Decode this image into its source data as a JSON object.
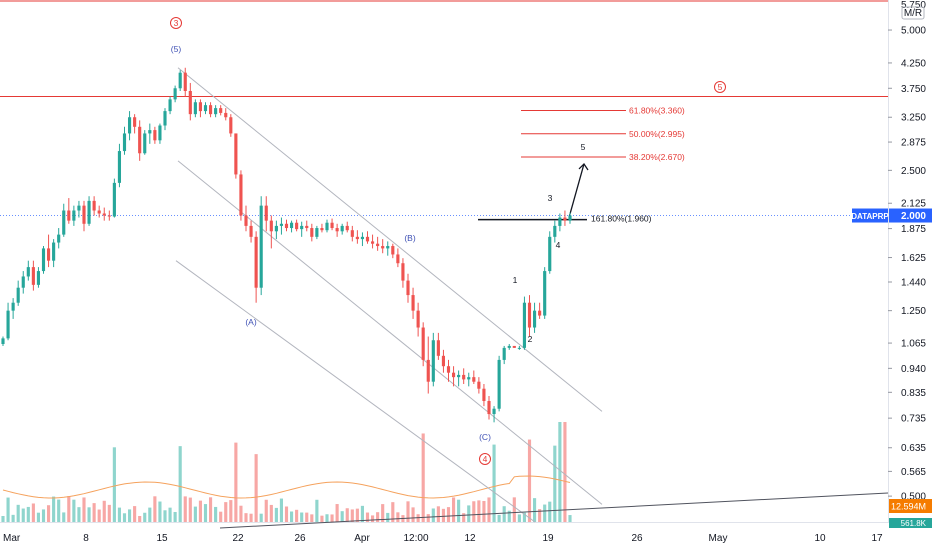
{
  "chart_data": {
    "type": "candlestick",
    "symbol": "DATAPRP",
    "last_price": "2.000",
    "scale_label": "M/R",
    "y_scale": "log",
    "ylim": [
      0.44,
      5.8
    ],
    "y_ticks": [
      "5.000",
      "4.250",
      "3.750",
      "3.250",
      "2.875",
      "2.500",
      "2.125",
      "1.875",
      "1.625",
      "1.440",
      "1.250",
      "1.065",
      "0.940",
      "0.835",
      "0.735",
      "0.635",
      "0.565",
      "0.500"
    ],
    "x_ticks": [
      "Mar",
      "8",
      "15",
      "22",
      "26",
      "Apr",
      "12:00",
      "12",
      "19",
      "26",
      "May",
      "10",
      "17"
    ],
    "candles_ohlc": [
      [
        1.06,
        1.1,
        1.05,
        1.09
      ],
      [
        1.09,
        1.3,
        1.08,
        1.25
      ],
      [
        1.25,
        1.33,
        1.2,
        1.3
      ],
      [
        1.3,
        1.45,
        1.28,
        1.4
      ],
      [
        1.4,
        1.52,
        1.36,
        1.48
      ],
      [
        1.48,
        1.6,
        1.45,
        1.55
      ],
      [
        1.55,
        1.6,
        1.38,
        1.42
      ],
      [
        1.42,
        1.55,
        1.4,
        1.52
      ],
      [
        1.52,
        1.72,
        1.5,
        1.7
      ],
      [
        1.7,
        1.82,
        1.55,
        1.6
      ],
      [
        1.6,
        1.78,
        1.55,
        1.75
      ],
      [
        1.75,
        1.88,
        1.7,
        1.82
      ],
      [
        1.82,
        2.12,
        1.8,
        2.05
      ],
      [
        2.05,
        2.18,
        1.92,
        1.95
      ],
      [
        1.95,
        2.1,
        1.9,
        2.05
      ],
      [
        2.05,
        2.15,
        1.98,
        2.1
      ],
      [
        2.1,
        2.15,
        1.85,
        1.92
      ],
      [
        1.92,
        2.2,
        1.9,
        2.15
      ],
      [
        2.15,
        2.2,
        2.0,
        2.05
      ],
      [
        2.05,
        2.1,
        1.98,
        2.02
      ],
      [
        2.02,
        2.08,
        1.95,
        2.0
      ],
      [
        2.0,
        2.05,
        1.95,
        1.99
      ],
      [
        1.99,
        2.4,
        1.98,
        2.35
      ],
      [
        2.35,
        2.85,
        2.3,
        2.75
      ],
      [
        2.75,
        3.1,
        2.7,
        3.0
      ],
      [
        3.0,
        3.35,
        2.9,
        3.25
      ],
      [
        3.25,
        3.3,
        3.0,
        3.1
      ],
      [
        3.1,
        3.2,
        2.62,
        2.72
      ],
      [
        2.72,
        3.05,
        2.7,
        3.0
      ],
      [
        3.0,
        3.15,
        2.85,
        3.05
      ],
      [
        3.05,
        3.1,
        2.85,
        2.9
      ],
      [
        2.9,
        3.15,
        2.85,
        3.12
      ],
      [
        3.12,
        3.4,
        3.05,
        3.35
      ],
      [
        3.35,
        3.6,
        3.3,
        3.55
      ],
      [
        3.55,
        3.8,
        3.5,
        3.75
      ],
      [
        3.75,
        4.1,
        3.7,
        4.05
      ],
      [
        4.05,
        4.15,
        3.6,
        3.7
      ],
      [
        3.7,
        3.85,
        3.2,
        3.3
      ],
      [
        3.3,
        3.55,
        3.25,
        3.5
      ],
      [
        3.5,
        3.55,
        3.25,
        3.35
      ],
      [
        3.35,
        3.5,
        3.3,
        3.45
      ],
      [
        3.45,
        3.5,
        3.25,
        3.3
      ],
      [
        3.3,
        3.45,
        3.25,
        3.4
      ],
      [
        3.4,
        3.45,
        3.28,
        3.32
      ],
      [
        3.32,
        3.4,
        3.2,
        3.25
      ],
      [
        3.25,
        3.3,
        2.95,
        3.0
      ],
      [
        3.0,
        3.0,
        2.4,
        2.45
      ],
      [
        2.45,
        2.5,
        1.95,
        2.0
      ],
      [
        2.0,
        2.1,
        1.85,
        1.9
      ],
      [
        1.9,
        1.95,
        1.75,
        1.8
      ],
      [
        1.8,
        1.85,
        1.3,
        1.4
      ],
      [
        1.4,
        2.2,
        1.35,
        2.1
      ],
      [
        2.1,
        2.2,
        1.85,
        1.95
      ],
      [
        1.95,
        2.0,
        1.7,
        1.85
      ],
      [
        1.85,
        1.95,
        1.78,
        1.9
      ],
      [
        1.9,
        1.98,
        1.82,
        1.92
      ],
      [
        1.92,
        1.96,
        1.85,
        1.88
      ],
      [
        1.88,
        1.95,
        1.84,
        1.93
      ],
      [
        1.93,
        1.96,
        1.85,
        1.87
      ],
      [
        1.87,
        1.94,
        1.8,
        1.9
      ],
      [
        1.9,
        1.95,
        1.85,
        1.88
      ],
      [
        1.88,
        1.92,
        1.76,
        1.8
      ],
      [
        1.8,
        1.9,
        1.78,
        1.88
      ],
      [
        1.88,
        1.92,
        1.84,
        1.86
      ],
      [
        1.86,
        1.96,
        1.84,
        1.93
      ],
      [
        1.93,
        1.97,
        1.86,
        1.88
      ],
      [
        1.88,
        1.92,
        1.8,
        1.85
      ],
      [
        1.85,
        1.92,
        1.82,
        1.9
      ],
      [
        1.9,
        1.94,
        1.84,
        1.86
      ],
      [
        1.86,
        1.9,
        1.76,
        1.8
      ],
      [
        1.8,
        1.86,
        1.74,
        1.78
      ],
      [
        1.78,
        1.84,
        1.72,
        1.8
      ],
      [
        1.8,
        1.85,
        1.74,
        1.76
      ],
      [
        1.76,
        1.82,
        1.7,
        1.74
      ],
      [
        1.74,
        1.8,
        1.68,
        1.72
      ],
      [
        1.72,
        1.78,
        1.66,
        1.7
      ],
      [
        1.7,
        1.76,
        1.64,
        1.72
      ],
      [
        1.72,
        1.74,
        1.62,
        1.65
      ],
      [
        1.65,
        1.7,
        1.55,
        1.58
      ],
      [
        1.58,
        1.62,
        1.4,
        1.45
      ],
      [
        1.45,
        1.5,
        1.3,
        1.35
      ],
      [
        1.35,
        1.4,
        1.2,
        1.25
      ],
      [
        1.25,
        1.3,
        1.1,
        1.15
      ],
      [
        1.15,
        1.18,
        0.95,
        0.98
      ],
      [
        0.98,
        1.1,
        0.83,
        0.88
      ],
      [
        0.88,
        1.12,
        0.86,
        1.08
      ],
      [
        1.08,
        1.12,
        0.98,
        1.0
      ],
      [
        1.0,
        1.03,
        0.92,
        0.95
      ],
      [
        0.95,
        0.98,
        0.88,
        0.92
      ],
      [
        0.92,
        0.95,
        0.86,
        0.9
      ],
      [
        0.9,
        0.93,
        0.86,
        0.91
      ],
      [
        0.91,
        0.94,
        0.87,
        0.89
      ],
      [
        0.89,
        0.92,
        0.86,
        0.9
      ],
      [
        0.9,
        0.93,
        0.87,
        0.88
      ],
      [
        0.88,
        0.9,
        0.83,
        0.85
      ],
      [
        0.85,
        0.87,
        0.78,
        0.8
      ],
      [
        0.8,
        0.82,
        0.73,
        0.75
      ],
      [
        0.75,
        0.78,
        0.72,
        0.77
      ],
      [
        0.77,
        1.0,
        0.76,
        0.98
      ],
      [
        0.98,
        1.05,
        0.96,
        1.04
      ],
      [
        1.04,
        1.06,
        1.03,
        1.05
      ],
      [
        1.05,
        1.05,
        1.04,
        1.04
      ],
      [
        1.04,
        1.05,
        1.03,
        1.04
      ],
      [
        1.04,
        1.34,
        1.03,
        1.3
      ],
      [
        1.3,
        1.35,
        1.1,
        1.15
      ],
      [
        1.15,
        1.3,
        1.12,
        1.25
      ],
      [
        1.25,
        1.3,
        1.2,
        1.22
      ],
      [
        1.22,
        1.55,
        1.2,
        1.52
      ],
      [
        1.52,
        1.85,
        1.5,
        1.8
      ],
      [
        1.8,
        1.95,
        1.75,
        1.9
      ],
      [
        1.9,
        2.02,
        1.85,
        1.98
      ],
      [
        1.98,
        2.05,
        1.9,
        1.95
      ],
      [
        1.95,
        2.03,
        1.92,
        2.0
      ]
    ],
    "levels": [
      {
        "label": "61.80%(3.360)",
        "value": 3.36,
        "color": "#e53935"
      },
      {
        "label": "50.00%(2.995)",
        "value": 2.995,
        "color": "#e53935"
      },
      {
        "label": "38.20%(2.670)",
        "value": 2.67,
        "color": "#e53935"
      },
      {
        "label": "161.80%(1.960)",
        "value": 1.96,
        "color": "#131722"
      }
    ],
    "wave_labels": [
      {
        "text": "(5)",
        "color": "#3f51b5",
        "circled": false
      },
      {
        "text": "(A)",
        "color": "#3f51b5",
        "circled": false
      },
      {
        "text": "(B)",
        "color": "#3f51b5",
        "circled": false
      },
      {
        "text": "(C)",
        "color": "#3f51b5",
        "circled": false
      },
      {
        "text": "3",
        "color": "#e53935",
        "circled": true
      },
      {
        "text": "4",
        "color": "#e53935",
        "circled": true
      },
      {
        "text": "5",
        "color": "#e53935",
        "circled": true
      },
      {
        "text": "1",
        "color": "#131722",
        "circled": false
      },
      {
        "text": "2",
        "color": "#131722",
        "circled": false
      },
      {
        "text": "3",
        "color": "#131722",
        "circled": false
      },
      {
        "text": "4",
        "color": "#131722",
        "circled": false
      },
      {
        "text": "5",
        "color": "#131722",
        "circled": false
      }
    ],
    "volume_badge": "12.594M",
    "volume_badge2": "561.8K",
    "colors": {
      "up": "#26a69a",
      "down": "#ef5350",
      "price_badge": "#2962ff",
      "volume_badge": "#f57c00",
      "volume_ma": "#f5a25d"
    }
  }
}
